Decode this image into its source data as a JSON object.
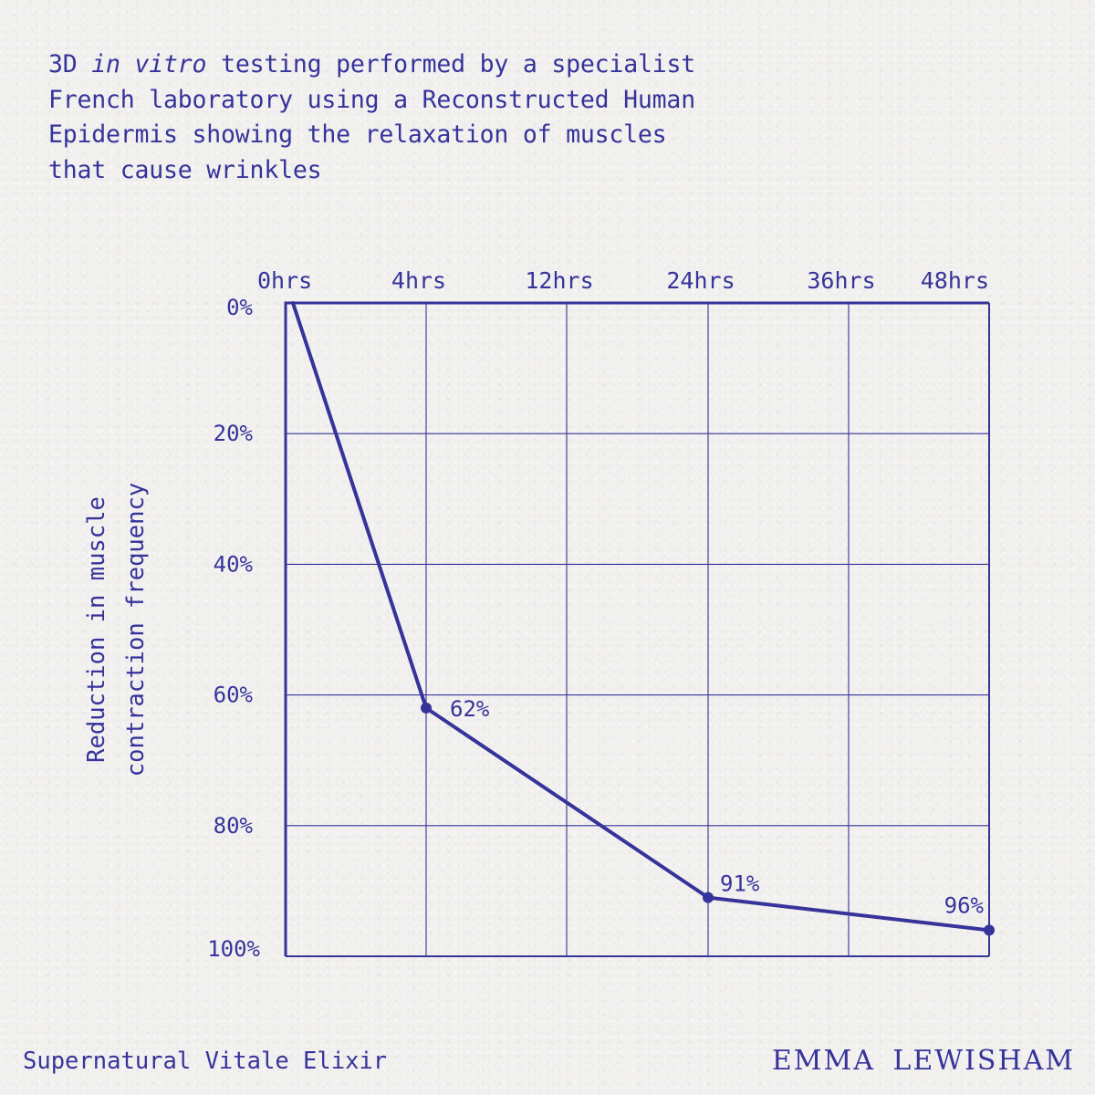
{
  "headline": {
    "part1": "3D ",
    "italic": "in vitro",
    "part2": " testing performed by a specialist",
    "line2": "French laboratory using a Reconstructed Human",
    "line3": "Epidermis showing the relaxation of muscles",
    "line4": "that cause wrinkles"
  },
  "footer": {
    "product": "Supernatural Vitale Elixir",
    "brand": "EMMA LEWISHAM"
  },
  "colors": {
    "ink": "#36339a",
    "background": "#f1f0ee"
  },
  "chart_data": {
    "type": "line",
    "title": "",
    "xlabel": "",
    "ylabel": [
      "Reduction in muscle",
      "contraction frequency"
    ],
    "categories": [
      "0hrs",
      "4hrs",
      "12hrs",
      "24hrs",
      "36hrs",
      "48hrs"
    ],
    "y_ticks": [
      "0%",
      "20%",
      "40%",
      "60%",
      "80%",
      "100%"
    ],
    "ylim": [
      0,
      100
    ],
    "y_axis_inverted": true,
    "x_axis_position": "top",
    "grid": true,
    "series": [
      {
        "x": [
          "0hrs",
          "4hrs",
          "24hrs",
          "48hrs"
        ],
        "values": [
          0,
          62,
          91,
          96
        ],
        "marker_at": [
          "4hrs",
          "24hrs",
          "48hrs"
        ]
      }
    ],
    "data_labels": [
      {
        "x": "4hrs",
        "y": 62,
        "text": "62%"
      },
      {
        "x": "24hrs",
        "y": 91,
        "text": "91%"
      },
      {
        "x": "48hrs",
        "y": 96,
        "text": "96%"
      }
    ]
  }
}
